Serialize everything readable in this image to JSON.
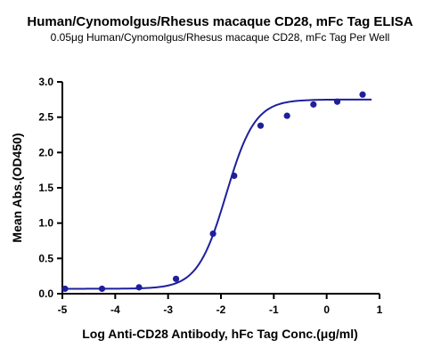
{
  "chart_data": {
    "type": "scatter",
    "title": "Human/Cynomolgus/Rhesus macaque CD28, mFc Tag ELISA",
    "subtitle": "0.05μg Human/Cynomolgus/Rhesus macaque CD28, mFc  Tag Per Well",
    "xlabel": "Log Anti-CD28 Antibody, hFc Tag Conc.(μg/ml)",
    "ylabel": "Mean Abs.(OD450)",
    "xlim": [
      -5,
      1
    ],
    "ylim": [
      0,
      3.0
    ],
    "xticks": [
      "-5",
      "-4",
      "-3",
      "-2",
      "-1",
      "0",
      "1"
    ],
    "yticks": [
      "0.0",
      "0.5",
      "1.0",
      "1.5",
      "2.0",
      "2.5",
      "3.0"
    ],
    "grid": false,
    "colors": {
      "series": "#1f1f9e",
      "axis": "#000000"
    },
    "series": [
      {
        "points": [
          {
            "x": -4.95,
            "y": 0.07
          },
          {
            "x": -4.25,
            "y": 0.07
          },
          {
            "x": -3.55,
            "y": 0.09
          },
          {
            "x": -2.85,
            "y": 0.21
          },
          {
            "x": -2.15,
            "y": 0.85
          },
          {
            "x": -1.75,
            "y": 1.67
          },
          {
            "x": -1.25,
            "y": 2.38
          },
          {
            "x": -0.75,
            "y": 2.52
          },
          {
            "x": -0.25,
            "y": 2.68
          },
          {
            "x": 0.2,
            "y": 2.72
          },
          {
            "x": 0.68,
            "y": 2.82
          }
        ],
        "fit": {
          "type": "4PL",
          "bottom": 0.07,
          "top": 2.75,
          "logEC50": -1.9,
          "hill": 1.6
        }
      }
    ]
  }
}
